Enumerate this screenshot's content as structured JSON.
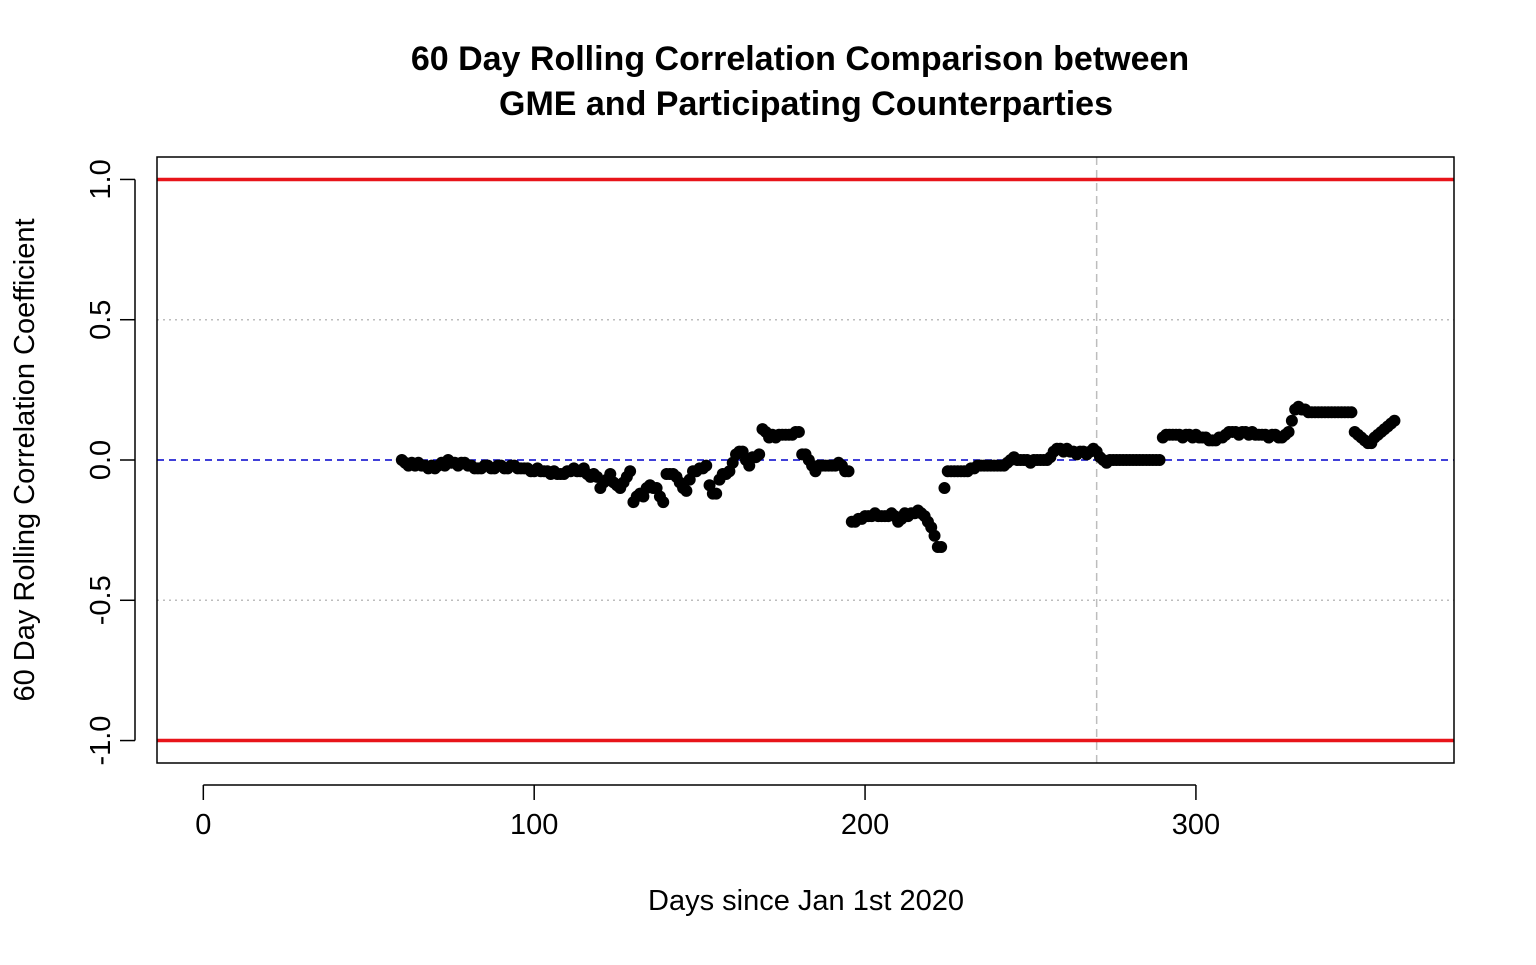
{
  "chart_data": {
    "type": "scatter",
    "title_line1": "60 Day Rolling Correlation Comparison between",
    "title_line2": "GME and Participating Counterparties",
    "xlabel": "Days since Jan 1st 2020",
    "ylabel": "60 Day Rolling Correlation Coefficient",
    "xlim": [
      -14,
      378
    ],
    "ylim": [
      -1.08,
      1.08
    ],
    "x_ticks": [
      0,
      100,
      200,
      300
    ],
    "x_tick_labels": [
      "0",
      "100",
      "200",
      "300"
    ],
    "y_ticks": [
      -1.0,
      -0.5,
      0.0,
      0.5,
      1.0
    ],
    "y_tick_labels": [
      "-1.0",
      "-0.5",
      "0.0",
      "0.5",
      "1.0"
    ],
    "reference_lines": {
      "horizontal_solid": [
        1.0,
        -1.0
      ],
      "horizontal_solid_color": "#e8141a",
      "horizontal_dotted": [
        0.5,
        -0.5
      ],
      "horizontal_dotted_color": "#bdbdbd",
      "horizontal_dashed": [
        0.0
      ],
      "horizontal_dashed_color": "#0000cc",
      "vertical_dashed": [
        270
      ],
      "vertical_dashed_color": "#bdbdbd"
    },
    "point_color": "#000000",
    "series": [
      {
        "points": [
          [
            60,
            0.0
          ],
          [
            61,
            -0.01
          ],
          [
            62,
            -0.02
          ],
          [
            63,
            -0.01
          ],
          [
            64,
            -0.02
          ],
          [
            65,
            -0.01
          ],
          [
            66,
            -0.02
          ],
          [
            67,
            -0.02
          ],
          [
            68,
            -0.03
          ],
          [
            69,
            -0.02
          ],
          [
            70,
            -0.03
          ],
          [
            71,
            -0.02
          ],
          [
            72,
            -0.01
          ],
          [
            73,
            -0.02
          ],
          [
            74,
            0.0
          ],
          [
            75,
            -0.01
          ],
          [
            76,
            -0.01
          ],
          [
            77,
            -0.02
          ],
          [
            78,
            -0.01
          ],
          [
            79,
            -0.01
          ],
          [
            80,
            -0.02
          ],
          [
            81,
            -0.02
          ],
          [
            82,
            -0.03
          ],
          [
            83,
            -0.03
          ],
          [
            84,
            -0.03
          ],
          [
            85,
            -0.02
          ],
          [
            86,
            -0.02
          ],
          [
            87,
            -0.03
          ],
          [
            88,
            -0.03
          ],
          [
            89,
            -0.02
          ],
          [
            90,
            -0.02
          ],
          [
            91,
            -0.03
          ],
          [
            92,
            -0.03
          ],
          [
            93,
            -0.02
          ],
          [
            94,
            -0.02
          ],
          [
            95,
            -0.03
          ],
          [
            96,
            -0.03
          ],
          [
            97,
            -0.03
          ],
          [
            98,
            -0.03
          ],
          [
            99,
            -0.04
          ],
          [
            100,
            -0.04
          ],
          [
            101,
            -0.03
          ],
          [
            102,
            -0.04
          ],
          [
            103,
            -0.04
          ],
          [
            104,
            -0.04
          ],
          [
            105,
            -0.05
          ],
          [
            106,
            -0.04
          ],
          [
            107,
            -0.05
          ],
          [
            108,
            -0.05
          ],
          [
            109,
            -0.05
          ],
          [
            110,
            -0.04
          ],
          [
            111,
            -0.04
          ],
          [
            112,
            -0.03
          ],
          [
            113,
            -0.04
          ],
          [
            114,
            -0.04
          ],
          [
            115,
            -0.03
          ],
          [
            116,
            -0.05
          ],
          [
            117,
            -0.06
          ],
          [
            118,
            -0.05
          ],
          [
            119,
            -0.06
          ],
          [
            120,
            -0.1
          ],
          [
            121,
            -0.08
          ],
          [
            122,
            -0.07
          ],
          [
            123,
            -0.05
          ],
          [
            124,
            -0.08
          ],
          [
            125,
            -0.09
          ],
          [
            126,
            -0.1
          ],
          [
            127,
            -0.08
          ],
          [
            128,
            -0.06
          ],
          [
            129,
            -0.04
          ],
          [
            130,
            -0.15
          ],
          [
            131,
            -0.13
          ],
          [
            132,
            -0.12
          ],
          [
            133,
            -0.13
          ],
          [
            134,
            -0.1
          ],
          [
            135,
            -0.09
          ],
          [
            136,
            -0.1
          ],
          [
            137,
            -0.1
          ],
          [
            138,
            -0.13
          ],
          [
            139,
            -0.15
          ],
          [
            140,
            -0.05
          ],
          [
            141,
            -0.05
          ],
          [
            142,
            -0.05
          ],
          [
            143,
            -0.06
          ],
          [
            144,
            -0.08
          ],
          [
            145,
            -0.1
          ],
          [
            146,
            -0.11
          ],
          [
            147,
            -0.07
          ],
          [
            148,
            -0.04
          ],
          [
            149,
            -0.04
          ],
          [
            150,
            -0.03
          ],
          [
            151,
            -0.03
          ],
          [
            152,
            -0.02
          ],
          [
            153,
            -0.09
          ],
          [
            154,
            -0.12
          ],
          [
            155,
            -0.12
          ],
          [
            156,
            -0.07
          ],
          [
            157,
            -0.05
          ],
          [
            158,
            -0.05
          ],
          [
            159,
            -0.04
          ],
          [
            160,
            -0.01
          ],
          [
            161,
            0.02
          ],
          [
            162,
            0.03
          ],
          [
            163,
            0.03
          ],
          [
            164,
            0.0
          ],
          [
            165,
            -0.02
          ],
          [
            166,
            0.01
          ],
          [
            167,
            0.01
          ],
          [
            168,
            0.02
          ],
          [
            169,
            0.11
          ],
          [
            170,
            0.1
          ],
          [
            171,
            0.08
          ],
          [
            172,
            0.09
          ],
          [
            173,
            0.08
          ],
          [
            174,
            0.09
          ],
          [
            175,
            0.09
          ],
          [
            176,
            0.09
          ],
          [
            177,
            0.09
          ],
          [
            178,
            0.09
          ],
          [
            179,
            0.1
          ],
          [
            180,
            0.1
          ],
          [
            181,
            0.02
          ],
          [
            182,
            0.02
          ],
          [
            183,
            0.0
          ],
          [
            184,
            -0.02
          ],
          [
            185,
            -0.04
          ],
          [
            186,
            -0.02
          ],
          [
            187,
            -0.02
          ],
          [
            188,
            -0.02
          ],
          [
            189,
            -0.02
          ],
          [
            190,
            -0.02
          ],
          [
            191,
            -0.02
          ],
          [
            192,
            -0.01
          ],
          [
            193,
            -0.02
          ],
          [
            194,
            -0.04
          ],
          [
            195,
            -0.04
          ],
          [
            196,
            -0.22
          ],
          [
            197,
            -0.22
          ],
          [
            198,
            -0.21
          ],
          [
            199,
            -0.21
          ],
          [
            200,
            -0.2
          ],
          [
            201,
            -0.2
          ],
          [
            202,
            -0.2
          ],
          [
            203,
            -0.19
          ],
          [
            204,
            -0.2
          ],
          [
            205,
            -0.2
          ],
          [
            206,
            -0.2
          ],
          [
            207,
            -0.2
          ],
          [
            208,
            -0.19
          ],
          [
            209,
            -0.2
          ],
          [
            210,
            -0.22
          ],
          [
            211,
            -0.21
          ],
          [
            212,
            -0.19
          ],
          [
            213,
            -0.2
          ],
          [
            214,
            -0.19
          ],
          [
            215,
            -0.19
          ],
          [
            216,
            -0.18
          ],
          [
            217,
            -0.19
          ],
          [
            218,
            -0.2
          ],
          [
            219,
            -0.22
          ],
          [
            220,
            -0.24
          ],
          [
            221,
            -0.27
          ],
          [
            222,
            -0.31
          ],
          [
            223,
            -0.31
          ],
          [
            224,
            -0.1
          ],
          [
            225,
            -0.04
          ],
          [
            226,
            -0.04
          ],
          [
            227,
            -0.04
          ],
          [
            228,
            -0.04
          ],
          [
            229,
            -0.04
          ],
          [
            230,
            -0.04
          ],
          [
            231,
            -0.04
          ],
          [
            232,
            -0.03
          ],
          [
            233,
            -0.03
          ],
          [
            234,
            -0.02
          ],
          [
            235,
            -0.02
          ],
          [
            236,
            -0.02
          ],
          [
            237,
            -0.02
          ],
          [
            238,
            -0.02
          ],
          [
            239,
            -0.02
          ],
          [
            240,
            -0.02
          ],
          [
            241,
            -0.02
          ],
          [
            242,
            -0.02
          ],
          [
            243,
            -0.01
          ],
          [
            244,
            0.0
          ],
          [
            245,
            0.01
          ],
          [
            246,
            0.0
          ],
          [
            247,
            0.0
          ],
          [
            248,
            0.0
          ],
          [
            249,
            0.0
          ],
          [
            250,
            -0.01
          ],
          [
            251,
            0.0
          ],
          [
            252,
            0.0
          ],
          [
            253,
            0.0
          ],
          [
            254,
            0.0
          ],
          [
            255,
            0.0
          ],
          [
            256,
            0.01
          ],
          [
            257,
            0.03
          ],
          [
            258,
            0.04
          ],
          [
            259,
            0.04
          ],
          [
            260,
            0.03
          ],
          [
            261,
            0.04
          ],
          [
            262,
            0.03
          ],
          [
            263,
            0.03
          ],
          [
            264,
            0.02
          ],
          [
            265,
            0.03
          ],
          [
            266,
            0.03
          ],
          [
            267,
            0.02
          ],
          [
            268,
            0.03
          ],
          [
            269,
            0.04
          ],
          [
            270,
            0.03
          ],
          [
            271,
            0.01
          ],
          [
            272,
            0.0
          ],
          [
            273,
            -0.01
          ],
          [
            274,
            0.0
          ],
          [
            275,
            0.0
          ],
          [
            276,
            0.0
          ],
          [
            277,
            0.0
          ],
          [
            278,
            0.0
          ],
          [
            279,
            0.0
          ],
          [
            280,
            0.0
          ],
          [
            281,
            0.0
          ],
          [
            282,
            0.0
          ],
          [
            283,
            0.0
          ],
          [
            284,
            0.0
          ],
          [
            285,
            0.0
          ],
          [
            286,
            0.0
          ],
          [
            287,
            0.0
          ],
          [
            288,
            0.0
          ],
          [
            289,
            0.0
          ],
          [
            290,
            0.08
          ],
          [
            291,
            0.09
          ],
          [
            292,
            0.09
          ],
          [
            293,
            0.09
          ],
          [
            294,
            0.09
          ],
          [
            295,
            0.09
          ],
          [
            296,
            0.08
          ],
          [
            297,
            0.09
          ],
          [
            298,
            0.09
          ],
          [
            299,
            0.08
          ],
          [
            300,
            0.09
          ],
          [
            301,
            0.08
          ],
          [
            302,
            0.08
          ],
          [
            303,
            0.08
          ],
          [
            304,
            0.07
          ],
          [
            305,
            0.07
          ],
          [
            306,
            0.07
          ],
          [
            307,
            0.08
          ],
          [
            308,
            0.08
          ],
          [
            309,
            0.09
          ],
          [
            310,
            0.1
          ],
          [
            311,
            0.1
          ],
          [
            312,
            0.1
          ],
          [
            313,
            0.09
          ],
          [
            314,
            0.1
          ],
          [
            315,
            0.1
          ],
          [
            316,
            0.09
          ],
          [
            317,
            0.1
          ],
          [
            318,
            0.09
          ],
          [
            319,
            0.09
          ],
          [
            320,
            0.09
          ],
          [
            321,
            0.09
          ],
          [
            322,
            0.08
          ],
          [
            323,
            0.09
          ],
          [
            324,
            0.09
          ],
          [
            325,
            0.08
          ],
          [
            326,
            0.08
          ],
          [
            327,
            0.09
          ],
          [
            328,
            0.1
          ],
          [
            329,
            0.14
          ],
          [
            330,
            0.18
          ],
          [
            331,
            0.19
          ],
          [
            332,
            0.18
          ],
          [
            333,
            0.18
          ],
          [
            334,
            0.17
          ],
          [
            335,
            0.17
          ],
          [
            336,
            0.17
          ],
          [
            337,
            0.17
          ],
          [
            338,
            0.17
          ],
          [
            339,
            0.17
          ],
          [
            340,
            0.17
          ],
          [
            341,
            0.17
          ],
          [
            342,
            0.17
          ],
          [
            343,
            0.17
          ],
          [
            344,
            0.17
          ],
          [
            345,
            0.17
          ],
          [
            346,
            0.17
          ],
          [
            347,
            0.17
          ],
          [
            348,
            0.1
          ],
          [
            349,
            0.09
          ],
          [
            350,
            0.08
          ],
          [
            351,
            0.07
          ],
          [
            352,
            0.06
          ],
          [
            353,
            0.06
          ],
          [
            354,
            0.08
          ],
          [
            355,
            0.09
          ],
          [
            356,
            0.1
          ],
          [
            357,
            0.11
          ],
          [
            358,
            0.12
          ],
          [
            359,
            0.13
          ],
          [
            360,
            0.14
          ]
        ]
      }
    ]
  }
}
